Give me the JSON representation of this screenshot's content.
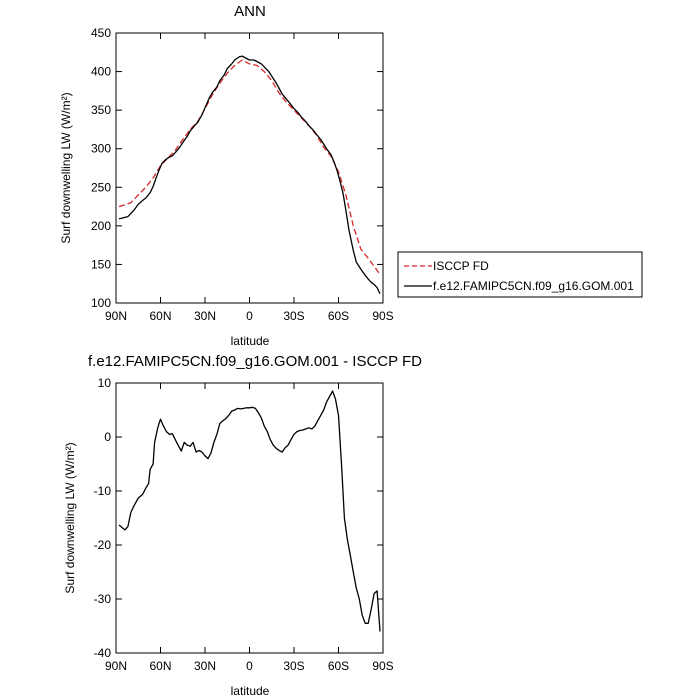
{
  "chart_data": [
    {
      "type": "line",
      "title": "ANN",
      "xlabel": "latitude",
      "ylabel": "Surf downwelling LW (W/m²)",
      "xlim": [
        90,
        -90
      ],
      "ylim": [
        100,
        450
      ],
      "x_ticks": [
        90,
        60,
        30,
        0,
        -30,
        -60,
        -90
      ],
      "x_tick_labels": [
        "90N",
        "60N",
        "30N",
        "0",
        "30S",
        "60S",
        "90S"
      ],
      "y_ticks": [
        100,
        150,
        200,
        250,
        300,
        350,
        400,
        450
      ],
      "y_tick_labels": [
        "100",
        "150",
        "200",
        "250",
        "300",
        "350",
        "400",
        "450"
      ],
      "grid": false,
      "legend_position": "right",
      "series": [
        {
          "name": "ISCCP FD",
          "color": "#d62728",
          "dash": "dashed",
          "x": [
            88,
            80,
            75,
            70,
            65,
            60,
            55,
            50,
            45,
            40,
            35,
            30,
            25,
            20,
            15,
            10,
            5,
            0,
            -5,
            -10,
            -15,
            -20,
            -25,
            -30,
            -35,
            -40,
            -45,
            -50,
            -55,
            -60,
            -65,
            -70,
            -75,
            -80,
            -85,
            -88
          ],
          "y": [
            225,
            230,
            240,
            250,
            262,
            278,
            288,
            298,
            312,
            325,
            335,
            352,
            370,
            385,
            398,
            408,
            415,
            410,
            408,
            400,
            388,
            372,
            360,
            350,
            340,
            330,
            318,
            302,
            290,
            270,
            240,
            200,
            170,
            158,
            145,
            137
          ]
        },
        {
          "name": "f.e12.FAMIPC5CN.f09_g16.GOM.001",
          "color": "#000000",
          "dash": "solid",
          "x": [
            88,
            82,
            78,
            75,
            72,
            70,
            67,
            65,
            63,
            61,
            59,
            57,
            55,
            52,
            50,
            47,
            45,
            42,
            40,
            37,
            35,
            32,
            30,
            27,
            25,
            22,
            20,
            17,
            15,
            12,
            10,
            7,
            5,
            2,
            0,
            -3,
            -5,
            -8,
            -10,
            -13,
            -15,
            -18,
            -20,
            -22,
            -25,
            -28,
            -30,
            -33,
            -35,
            -38,
            -40,
            -43,
            -45,
            -48,
            -50,
            -52,
            -55,
            -57,
            -59,
            -61,
            -63,
            -65,
            -67,
            -70,
            -72,
            -75,
            -78,
            -80,
            -82,
            -84,
            -86,
            -88
          ],
          "y": [
            209,
            212,
            220,
            228,
            233,
            236,
            243,
            251,
            262,
            272,
            281,
            285,
            288,
            291,
            295,
            302,
            308,
            316,
            323,
            330,
            334,
            344,
            353,
            366,
            373,
            380,
            388,
            396,
            404,
            410,
            415,
            419,
            420,
            417,
            415,
            415,
            413,
            410,
            406,
            400,
            394,
            385,
            378,
            371,
            364,
            357,
            352,
            346,
            341,
            335,
            330,
            324,
            319,
            312,
            306,
            300,
            292,
            283,
            272,
            258,
            243,
            220,
            195,
            168,
            153,
            144,
            136,
            131,
            127,
            124,
            120,
            112
          ]
        }
      ]
    },
    {
      "type": "line",
      "title": "f.e12.FAMIPC5CN.f09_g16.GOM.001 - ISCCP FD",
      "xlabel": "latitude",
      "ylabel": "Surf downwelling LW (W/m²)",
      "xlim": [
        90,
        -90
      ],
      "ylim": [
        -40,
        10
      ],
      "x_ticks": [
        90,
        60,
        30,
        0,
        -30,
        -60,
        -90
      ],
      "x_tick_labels": [
        "90N",
        "60N",
        "30N",
        "0",
        "30S",
        "60S",
        "90S"
      ],
      "y_ticks": [
        -40,
        -30,
        -20,
        -10,
        0,
        10
      ],
      "y_tick_labels": [
        "-40",
        "-30",
        "-20",
        "-10",
        "0",
        "10"
      ],
      "grid": false,
      "series": [
        {
          "name": "f.e12.FAMIPC5CN.f09_g16.GOM.001 - ISCCP FD",
          "color": "#000000",
          "dash": "solid",
          "x": [
            88,
            84,
            82,
            80,
            78,
            75,
            72,
            70,
            68,
            67,
            65,
            64,
            62,
            61,
            60,
            58,
            56,
            54,
            52,
            50,
            48,
            46,
            44,
            42,
            40,
            38,
            36,
            34,
            32,
            30,
            28,
            26,
            24,
            22,
            20,
            18,
            16,
            14,
            12,
            10,
            8,
            6,
            4,
            2,
            0,
            -2,
            -4,
            -6,
            -8,
            -10,
            -12,
            -14,
            -16,
            -18,
            -20,
            -22,
            -24,
            -26,
            -28,
            -30,
            -32,
            -34,
            -36,
            -38,
            -40,
            -42,
            -44,
            -46,
            -48,
            -50,
            -52,
            -54,
            -56,
            -58,
            -60,
            -62,
            -64,
            -66,
            -68,
            -70,
            -72,
            -74,
            -76,
            -78,
            -80,
            -82,
            -84,
            -86,
            -88
          ],
          "y": [
            -16.3,
            -17.2,
            -16.6,
            -14.0,
            -12.8,
            -11.3,
            -10.6,
            -9.5,
            -8.6,
            -6.0,
            -5.0,
            -1.0,
            1.5,
            2.5,
            3.3,
            2.0,
            1.0,
            0.5,
            0.6,
            -0.5,
            -1.6,
            -2.6,
            -1.0,
            -1.5,
            -1.7,
            -1.0,
            -2.8,
            -2.5,
            -2.8,
            -3.5,
            -4.0,
            -3.0,
            -1.0,
            0.5,
            2.5,
            3.0,
            3.4,
            4.0,
            4.8,
            5.0,
            5.3,
            5.2,
            5.3,
            5.4,
            5.4,
            5.5,
            5.3,
            4.5,
            3.5,
            2.0,
            1.0,
            -0.5,
            -1.5,
            -2.1,
            -2.5,
            -2.8,
            -2.0,
            -1.5,
            -0.5,
            0.5,
            1.0,
            1.2,
            1.3,
            1.5,
            1.7,
            1.5,
            2.0,
            3.0,
            4.0,
            5.0,
            6.5,
            7.5,
            8.5,
            7.0,
            4.0,
            -5.0,
            -15.0,
            -19.0,
            -22.0,
            -25.0,
            -28.0,
            -30.0,
            -33.0,
            -34.5,
            -34.5,
            -32.0,
            -29.0,
            -28.5,
            -36.0
          ]
        }
      ]
    }
  ]
}
